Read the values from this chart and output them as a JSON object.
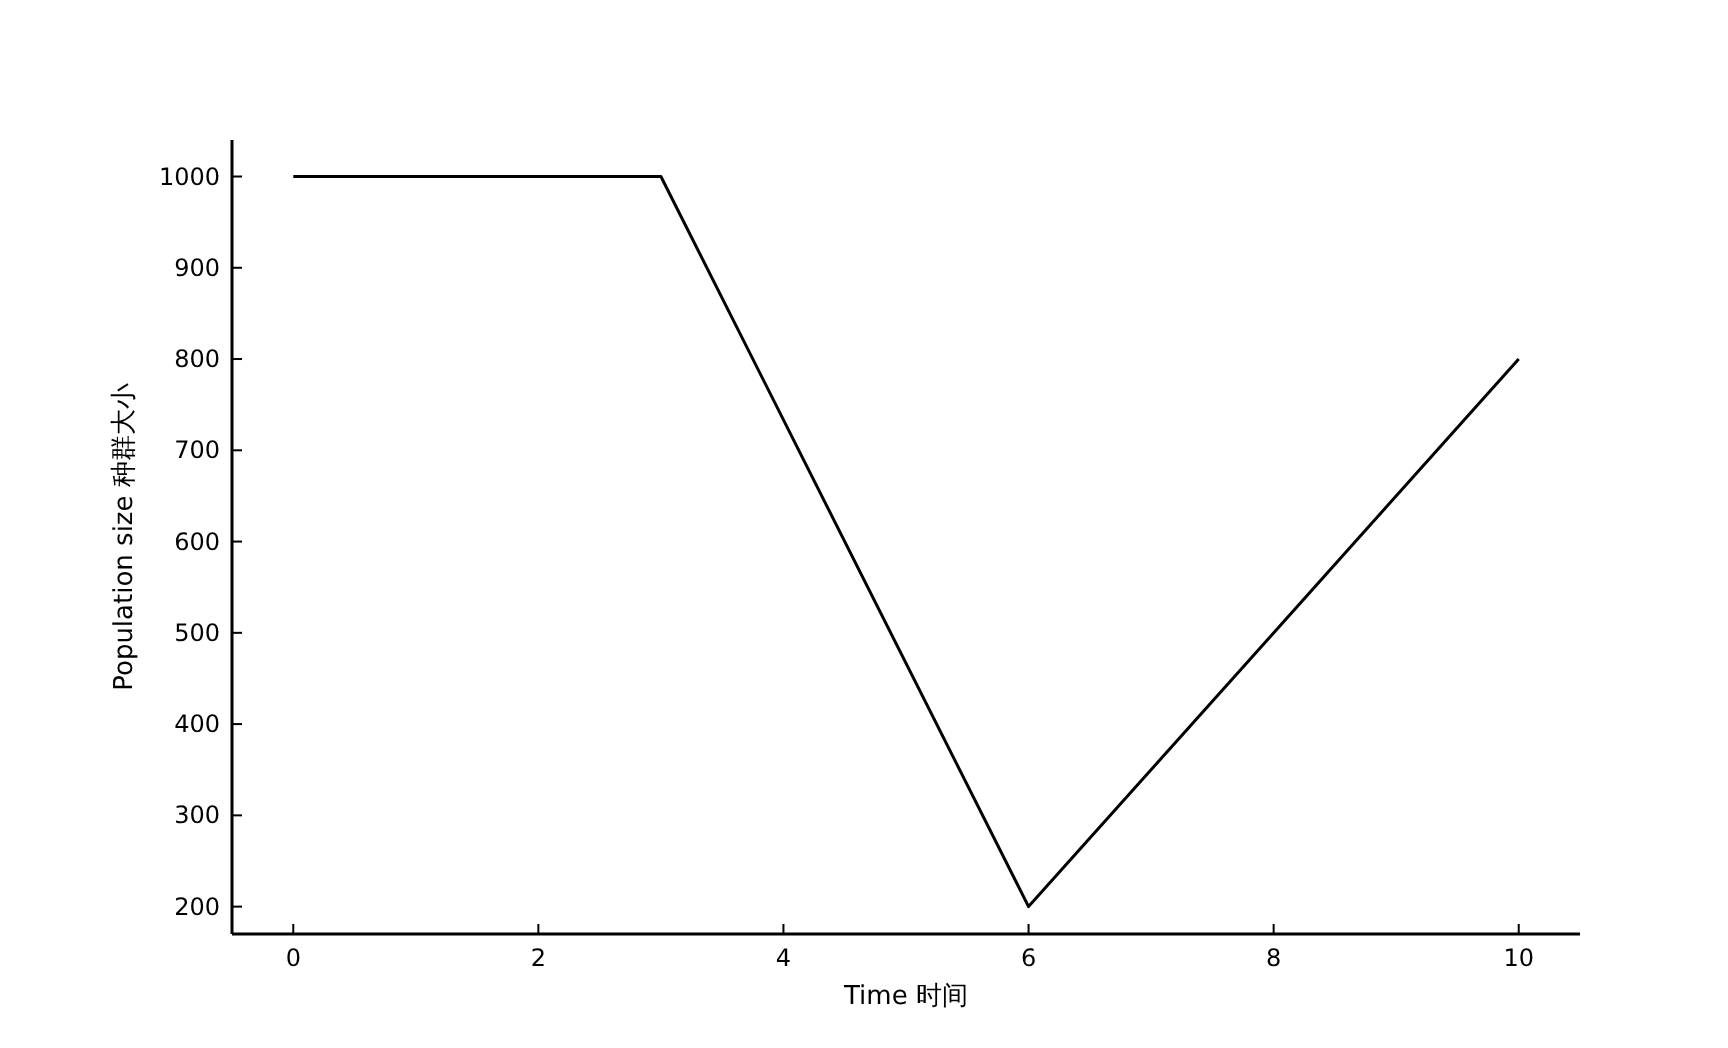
{
  "chart_data": {
    "type": "line",
    "xlabel": "Time 时间",
    "ylabel": "Population size 种群大小",
    "x": [
      0,
      3,
      6,
      10
    ],
    "series": [
      {
        "color": "#000000",
        "values": [
          1000,
          1000,
          200,
          800
        ]
      }
    ],
    "xlim": [
      -0.5,
      10.5
    ],
    "ylim": [
      170,
      1040
    ],
    "xticks": [
      0,
      2,
      4,
      6,
      8,
      10
    ],
    "yticks": [
      200,
      300,
      400,
      500,
      600,
      700,
      800,
      900,
      1000
    ]
  }
}
